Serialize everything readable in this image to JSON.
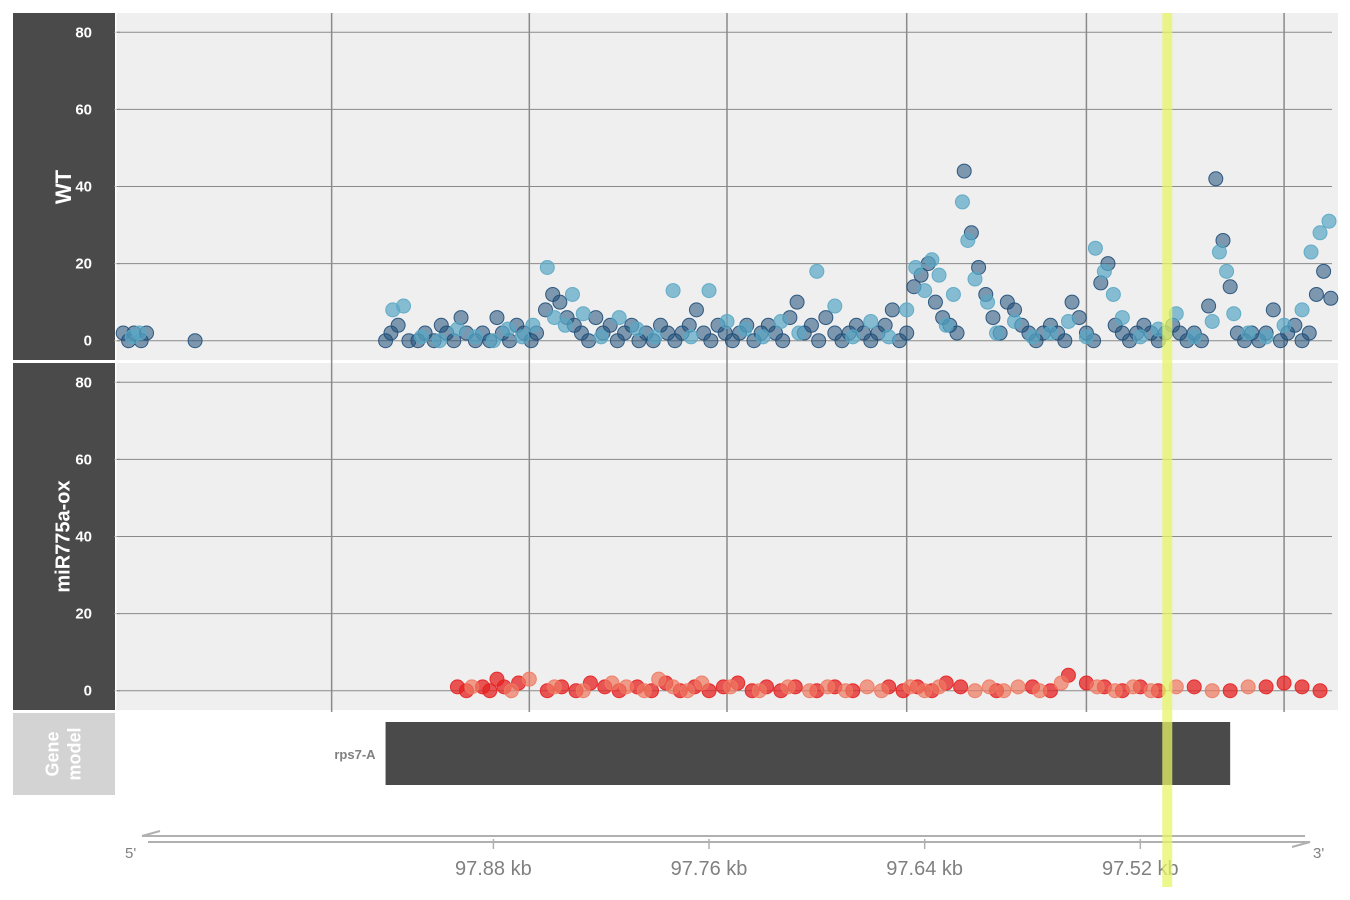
{
  "colors": {
    "panel_title_bg": "#4a4a4a",
    "gene_title_bg": "#d3d3d3",
    "plot_bg": "#efefef",
    "grid": "#8a8a8a",
    "wt_light": "#5aa7c4",
    "wt_dark": "#1f4e79",
    "ox_light": "#f07860",
    "ox_dark": "#e52020",
    "highlight": "#e6f564",
    "gene_model": "#4a4a4a",
    "axis_text": "#808080"
  },
  "tracks": [
    {
      "label": "WT"
    },
    {
      "label": "miR775a-ox"
    }
  ],
  "gene_track": {
    "label_line1": "Gene",
    "label_line2": "model",
    "gene_name": "rps7-A"
  },
  "axis": {
    "five_prime": "5'",
    "three_prime": "3'"
  },
  "chart_data": {
    "type": "scatter",
    "x_unit": "kb",
    "x_axis_reversed": true,
    "xlim": [
      98.09,
      97.41
    ],
    "x_ticks": [
      97.88,
      97.76,
      97.64,
      97.52
    ],
    "x_tick_labels": [
      "97.88 kb",
      "97.76 kb",
      "97.64 kb",
      "97.52 kb"
    ],
    "ylim": [
      -5,
      85
    ],
    "y_ticks": [
      0,
      20,
      40,
      60,
      80
    ],
    "y_tick_labels": [
      "0",
      "20",
      "40",
      "60",
      "80"
    ],
    "grid": true,
    "gene": {
      "name": "rps7-A",
      "start": 97.47,
      "end": 97.94
    },
    "highlight_x": 97.505,
    "series": [
      {
        "track": "WT",
        "shade": "dark",
        "points": [
          [
            98.086,
            2
          ],
          [
            98.083,
            0
          ],
          [
            98.08,
            2
          ],
          [
            98.076,
            0
          ],
          [
            98.073,
            2
          ],
          [
            98.046,
            0
          ],
          [
            97.94,
            0
          ],
          [
            97.937,
            2
          ],
          [
            97.933,
            4
          ],
          [
            97.927,
            0
          ],
          [
            97.922,
            0
          ],
          [
            97.918,
            2
          ],
          [
            97.913,
            0
          ],
          [
            97.909,
            4
          ],
          [
            97.906,
            2
          ],
          [
            97.902,
            0
          ],
          [
            97.898,
            6
          ],
          [
            97.895,
            2
          ],
          [
            97.89,
            0
          ],
          [
            97.886,
            2
          ],
          [
            97.882,
            0
          ],
          [
            97.878,
            6
          ],
          [
            97.875,
            2
          ],
          [
            97.871,
            0
          ],
          [
            97.867,
            4
          ],
          [
            97.863,
            2
          ],
          [
            97.859,
            0
          ],
          [
            97.856,
            2
          ],
          [
            97.851,
            8
          ],
          [
            97.847,
            12
          ],
          [
            97.843,
            10
          ],
          [
            97.839,
            6
          ],
          [
            97.835,
            4
          ],
          [
            97.831,
            2
          ],
          [
            97.827,
            0
          ],
          [
            97.823,
            6
          ],
          [
            97.819,
            2
          ],
          [
            97.815,
            4
          ],
          [
            97.811,
            0
          ],
          [
            97.807,
            2
          ],
          [
            97.803,
            4
          ],
          [
            97.799,
            0
          ],
          [
            97.795,
            2
          ],
          [
            97.791,
            0
          ],
          [
            97.787,
            4
          ],
          [
            97.783,
            2
          ],
          [
            97.779,
            0
          ],
          [
            97.775,
            2
          ],
          [
            97.771,
            4
          ],
          [
            97.767,
            8
          ],
          [
            97.763,
            2
          ],
          [
            97.759,
            0
          ],
          [
            97.755,
            4
          ],
          [
            97.751,
            2
          ],
          [
            97.747,
            0
          ],
          [
            97.743,
            2
          ],
          [
            97.739,
            4
          ],
          [
            97.735,
            0
          ],
          [
            97.731,
            2
          ],
          [
            97.727,
            4
          ],
          [
            97.723,
            2
          ],
          [
            97.719,
            0
          ],
          [
            97.715,
            6
          ],
          [
            97.711,
            10
          ],
          [
            97.707,
            2
          ],
          [
            97.703,
            4
          ],
          [
            97.699,
            0
          ],
          [
            97.695,
            6
          ],
          [
            97.69,
            2
          ],
          [
            97.686,
            0
          ],
          [
            97.682,
            2
          ],
          [
            97.678,
            4
          ],
          [
            97.674,
            2
          ],
          [
            97.67,
            0
          ],
          [
            97.666,
            2
          ],
          [
            97.662,
            4
          ],
          [
            97.658,
            8
          ],
          [
            97.654,
            0
          ],
          [
            97.65,
            2
          ],
          [
            97.646,
            14
          ],
          [
            97.642,
            17
          ],
          [
            97.638,
            20
          ],
          [
            97.634,
            10
          ],
          [
            97.63,
            6
          ],
          [
            97.626,
            4
          ],
          [
            97.622,
            2
          ],
          [
            97.618,
            44
          ],
          [
            97.614,
            28
          ],
          [
            97.61,
            19
          ],
          [
            97.606,
            12
          ],
          [
            97.602,
            6
          ],
          [
            97.598,
            2
          ],
          [
            97.594,
            10
          ],
          [
            97.59,
            8
          ],
          [
            97.586,
            4
          ],
          [
            97.582,
            2
          ],
          [
            97.578,
            0
          ],
          [
            97.574,
            2
          ],
          [
            97.57,
            4
          ],
          [
            97.566,
            2
          ],
          [
            97.562,
            0
          ],
          [
            97.558,
            10
          ],
          [
            97.554,
            6
          ],
          [
            97.55,
            2
          ],
          [
            97.546,
            0
          ],
          [
            97.542,
            15
          ],
          [
            97.538,
            20
          ],
          [
            97.534,
            4
          ],
          [
            97.53,
            2
          ],
          [
            97.526,
            0
          ],
          [
            97.522,
            2
          ],
          [
            97.518,
            4
          ],
          [
            97.514,
            2
          ],
          [
            97.51,
            0
          ],
          [
            97.506,
            2
          ],
          [
            97.502,
            4
          ],
          [
            97.498,
            2
          ],
          [
            97.494,
            0
          ],
          [
            97.49,
            2
          ],
          [
            97.486,
            0
          ],
          [
            97.482,
            9
          ],
          [
            97.478,
            42
          ],
          [
            97.474,
            26
          ],
          [
            97.47,
            14
          ],
          [
            97.466,
            2
          ],
          [
            97.462,
            0
          ],
          [
            97.458,
            2
          ],
          [
            97.454,
            0
          ],
          [
            97.45,
            2
          ],
          [
            97.446,
            8
          ],
          [
            97.442,
            0
          ],
          [
            97.438,
            2
          ],
          [
            97.434,
            4
          ],
          [
            97.43,
            0
          ],
          [
            97.426,
            2
          ],
          [
            97.422,
            12
          ],
          [
            97.418,
            18
          ],
          [
            97.414,
            11
          ],
          [
            97.41,
            6
          ],
          [
            97.406,
            2
          ],
          [
            97.402,
            0
          ]
        ]
      },
      {
        "track": "WT",
        "shade": "light",
        "points": [
          [
            98.081,
            1
          ],
          [
            98.077,
            2
          ],
          [
            97.936,
            8
          ],
          [
            97.93,
            9
          ],
          [
            97.92,
            1
          ],
          [
            97.91,
            0
          ],
          [
            97.9,
            3
          ],
          [
            97.89,
            1
          ],
          [
            97.88,
            0
          ],
          [
            97.872,
            3
          ],
          [
            97.864,
            1
          ],
          [
            97.858,
            4
          ],
          [
            97.85,
            19
          ],
          [
            97.846,
            6
          ],
          [
            97.84,
            4
          ],
          [
            97.836,
            12
          ],
          [
            97.83,
            7
          ],
          [
            97.82,
            1
          ],
          [
            97.81,
            6
          ],
          [
            97.8,
            3
          ],
          [
            97.79,
            1
          ],
          [
            97.78,
            13
          ],
          [
            97.77,
            1
          ],
          [
            97.76,
            13
          ],
          [
            97.75,
            5
          ],
          [
            97.74,
            3
          ],
          [
            97.73,
            1
          ],
          [
            97.72,
            5
          ],
          [
            97.71,
            2
          ],
          [
            97.7,
            18
          ],
          [
            97.69,
            9
          ],
          [
            97.68,
            1
          ],
          [
            97.67,
            5
          ],
          [
            97.66,
            1
          ],
          [
            97.65,
            8
          ],
          [
            97.645,
            19
          ],
          [
            97.64,
            13
          ],
          [
            97.636,
            21
          ],
          [
            97.632,
            17
          ],
          [
            97.628,
            4
          ],
          [
            97.624,
            12
          ],
          [
            97.619,
            36
          ],
          [
            97.616,
            26
          ],
          [
            97.612,
            16
          ],
          [
            97.605,
            10
          ],
          [
            97.6,
            2
          ],
          [
            97.59,
            5
          ],
          [
            97.58,
            1
          ],
          [
            97.57,
            2
          ],
          [
            97.56,
            5
          ],
          [
            97.55,
            1
          ],
          [
            97.545,
            24
          ],
          [
            97.54,
            18
          ],
          [
            97.535,
            12
          ],
          [
            97.53,
            6
          ],
          [
            97.52,
            1
          ],
          [
            97.51,
            3
          ],
          [
            97.5,
            7
          ],
          [
            97.49,
            1
          ],
          [
            97.48,
            5
          ],
          [
            97.476,
            23
          ],
          [
            97.472,
            18
          ],
          [
            97.468,
            7
          ],
          [
            97.46,
            2
          ],
          [
            97.45,
            1
          ],
          [
            97.44,
            4
          ],
          [
            97.43,
            8
          ],
          [
            97.425,
            23
          ],
          [
            97.42,
            28
          ],
          [
            97.415,
            31
          ],
          [
            97.41,
            20
          ],
          [
            97.405,
            9
          ],
          [
            97.4,
            3
          ]
        ]
      },
      {
        "track": "miR775a-ox",
        "shade": "dark",
        "points": [
          [
            97.9,
            1
          ],
          [
            97.895,
            0
          ],
          [
            97.886,
            1
          ],
          [
            97.882,
            0
          ],
          [
            97.878,
            3
          ],
          [
            97.874,
            1
          ],
          [
            97.866,
            2
          ],
          [
            97.85,
            0
          ],
          [
            97.842,
            1
          ],
          [
            97.834,
            0
          ],
          [
            97.826,
            2
          ],
          [
            97.818,
            1
          ],
          [
            97.81,
            0
          ],
          [
            97.8,
            1
          ],
          [
            97.792,
            0
          ],
          [
            97.784,
            2
          ],
          [
            97.776,
            0
          ],
          [
            97.768,
            1
          ],
          [
            97.76,
            0
          ],
          [
            97.752,
            1
          ],
          [
            97.744,
            2
          ],
          [
            97.736,
            0
          ],
          [
            97.728,
            1
          ],
          [
            97.72,
            0
          ],
          [
            97.712,
            1
          ],
          [
            97.7,
            0
          ],
          [
            97.69,
            1
          ],
          [
            97.68,
            0
          ],
          [
            97.66,
            1
          ],
          [
            97.652,
            0
          ],
          [
            97.644,
            1
          ],
          [
            97.636,
            0
          ],
          [
            97.628,
            2
          ],
          [
            97.62,
            1
          ],
          [
            97.6,
            0
          ],
          [
            97.58,
            1
          ],
          [
            97.57,
            0
          ],
          [
            97.56,
            4
          ],
          [
            97.55,
            2
          ],
          [
            97.54,
            1
          ],
          [
            97.53,
            0
          ],
          [
            97.52,
            1
          ],
          [
            97.51,
            0
          ],
          [
            97.49,
            1
          ],
          [
            97.47,
            0
          ],
          [
            97.45,
            1
          ],
          [
            97.44,
            2
          ],
          [
            97.43,
            1
          ],
          [
            97.42,
            0
          ]
        ]
      },
      {
        "track": "miR775a-ox",
        "shade": "light",
        "points": [
          [
            97.892,
            1
          ],
          [
            97.87,
            0
          ],
          [
            97.86,
            3
          ],
          [
            97.846,
            1
          ],
          [
            97.83,
            0
          ],
          [
            97.814,
            2
          ],
          [
            97.806,
            1
          ],
          [
            97.796,
            0
          ],
          [
            97.788,
            3
          ],
          [
            97.78,
            1
          ],
          [
            97.772,
            0
          ],
          [
            97.764,
            2
          ],
          [
            97.748,
            1
          ],
          [
            97.732,
            0
          ],
          [
            97.716,
            1
          ],
          [
            97.704,
            0
          ],
          [
            97.694,
            1
          ],
          [
            97.684,
            0
          ],
          [
            97.672,
            1
          ],
          [
            97.664,
            0
          ],
          [
            97.648,
            1
          ],
          [
            97.64,
            0
          ],
          [
            97.632,
            1
          ],
          [
            97.612,
            0
          ],
          [
            97.604,
            1
          ],
          [
            97.596,
            0
          ],
          [
            97.588,
            1
          ],
          [
            97.576,
            0
          ],
          [
            97.564,
            2
          ],
          [
            97.544,
            1
          ],
          [
            97.534,
            0
          ],
          [
            97.524,
            1
          ],
          [
            97.514,
            0
          ],
          [
            97.5,
            1
          ],
          [
            97.48,
            0
          ],
          [
            97.46,
            1
          ]
        ]
      }
    ]
  }
}
